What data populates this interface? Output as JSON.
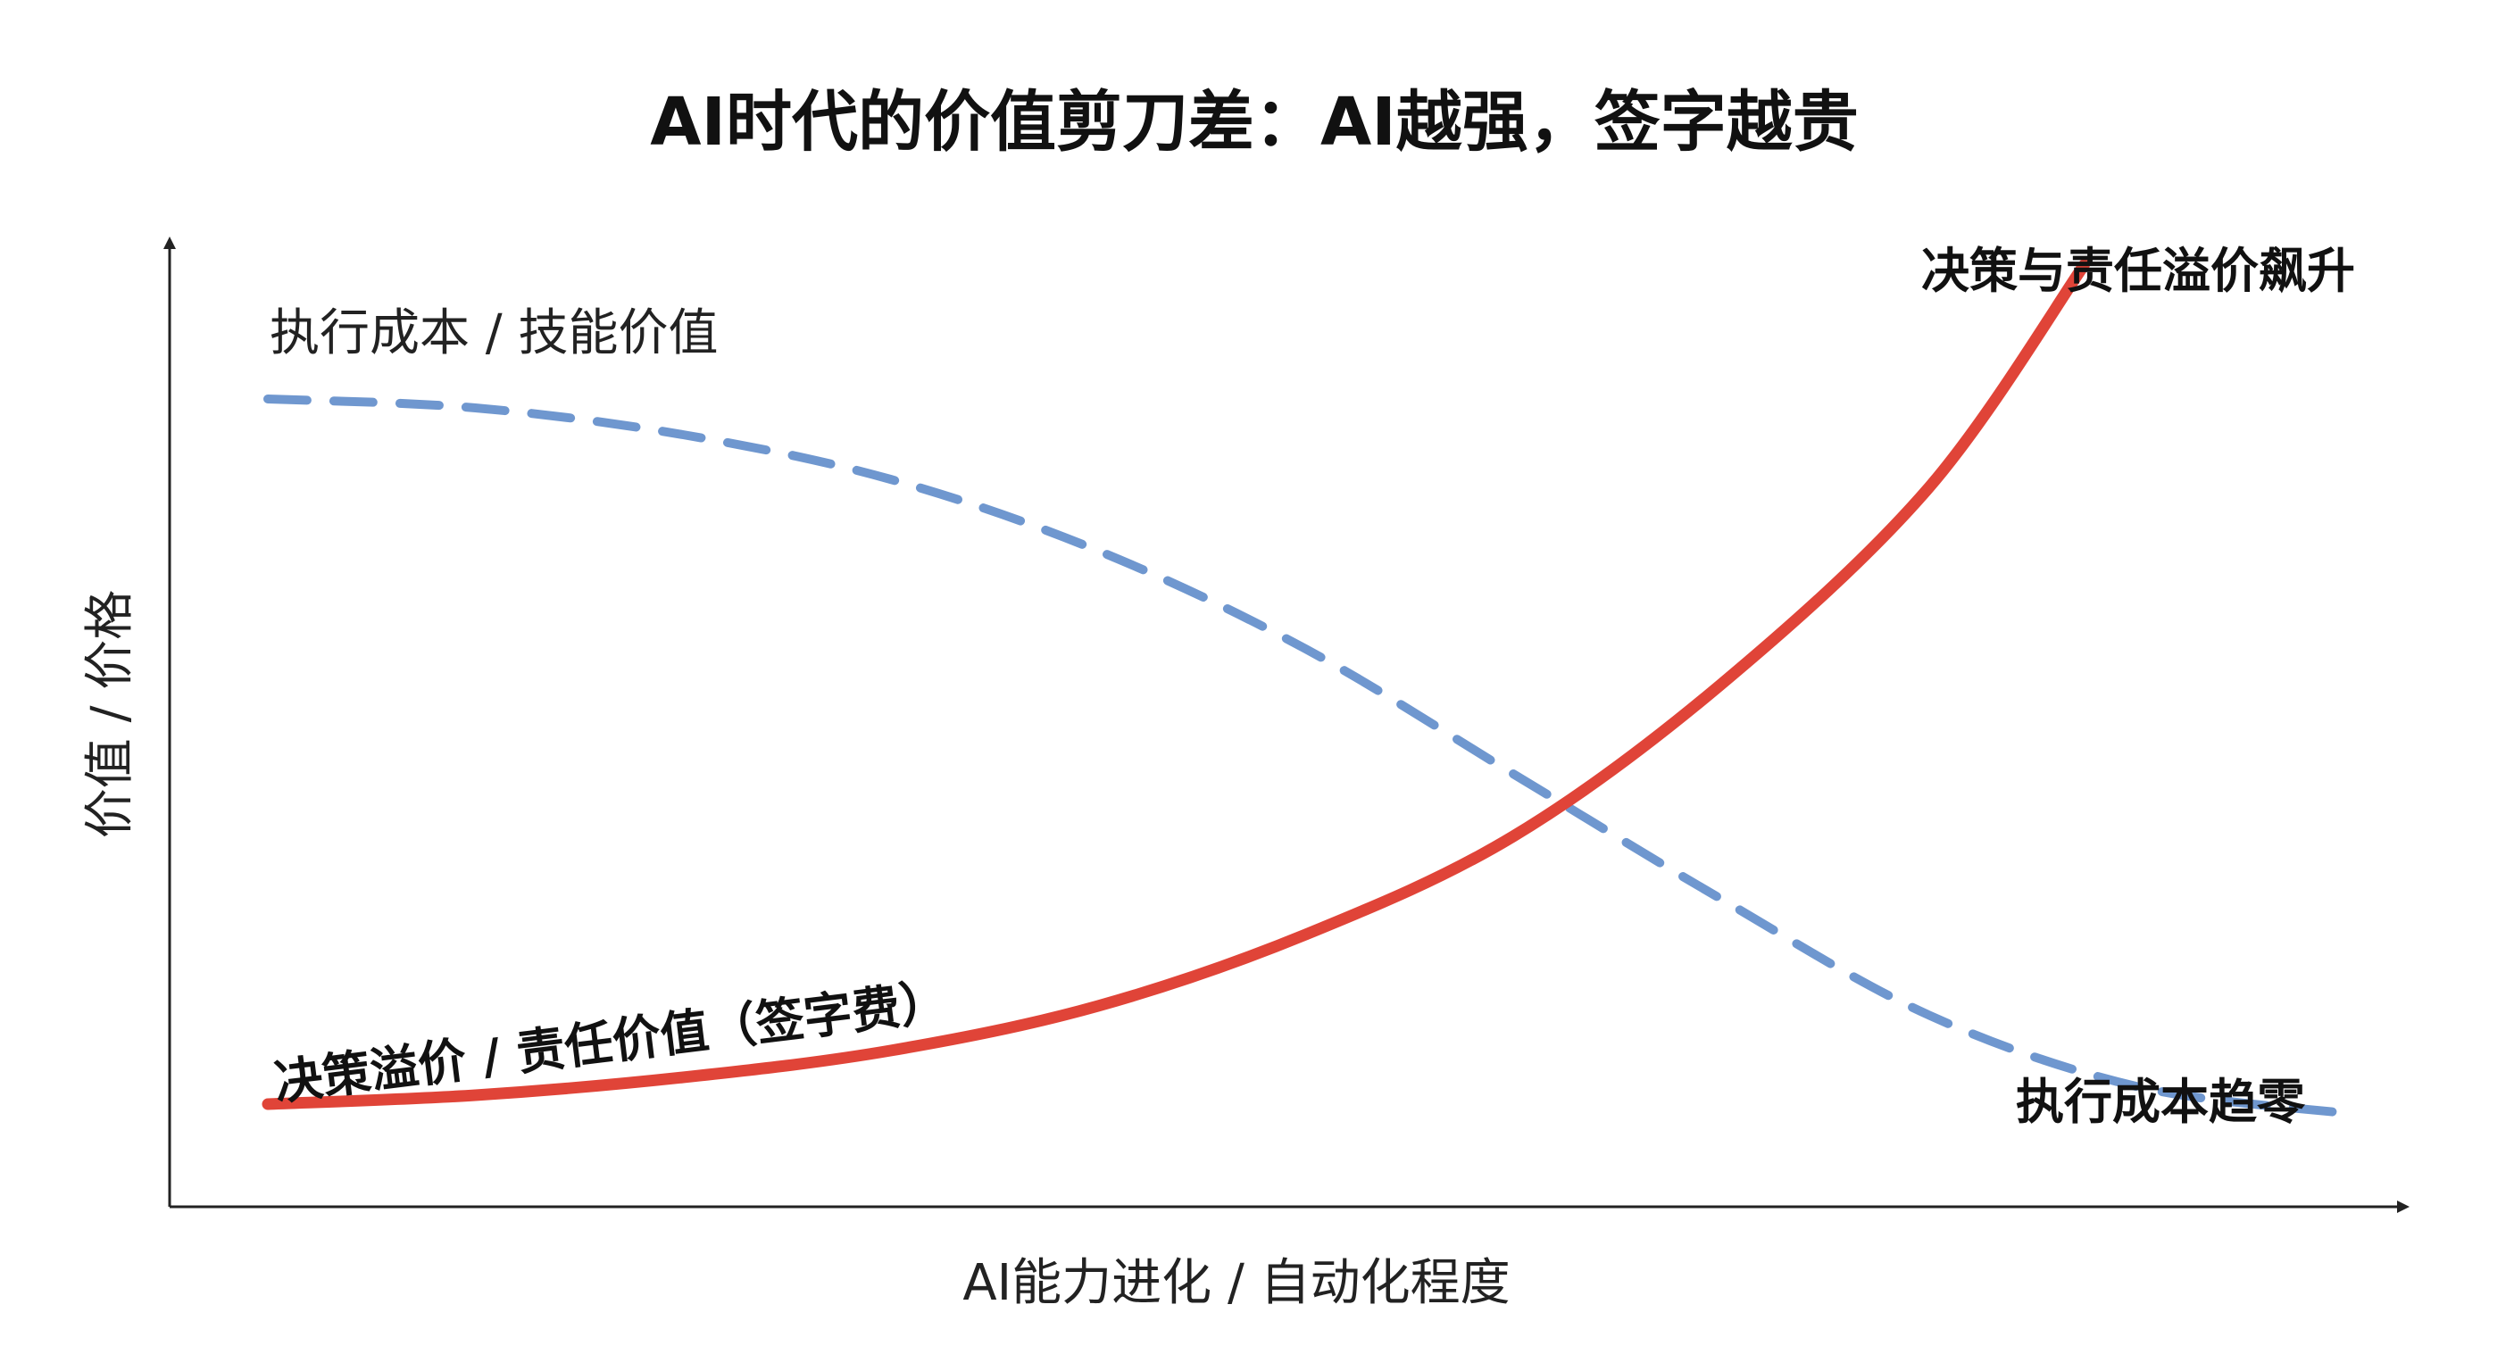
{
  "chart_data": {
    "type": "line",
    "title": "AI时代的价值剪刀差：AI越强，签字越贵",
    "xlabel": "AI能力进化 / 自动化程度",
    "ylabel": "价值 / 价格",
    "grid": false,
    "axis_ticks": false,
    "series": [
      {
        "name": "执行成本 / 技能价值",
        "style": "dashed",
        "color": "#6f97cf",
        "end_label": "执行成本趋零",
        "points": [
          [
            0.0,
            0.85
          ],
          [
            0.1,
            0.84
          ],
          [
            0.2,
            0.81
          ],
          [
            0.3,
            0.76
          ],
          [
            0.4,
            0.68
          ],
          [
            0.5,
            0.57
          ],
          [
            0.6,
            0.43
          ],
          [
            0.7,
            0.29
          ],
          [
            0.8,
            0.16
          ],
          [
            0.9,
            0.08
          ],
          [
            1.0,
            0.05
          ]
        ]
      },
      {
        "name": "决策溢价 / 责任价值（签字费）",
        "style": "solid",
        "color": "#e04438",
        "end_label": "决策与责任溢价飙升",
        "points": [
          [
            0.0,
            0.06
          ],
          [
            0.1,
            0.07
          ],
          [
            0.2,
            0.09
          ],
          [
            0.3,
            0.12
          ],
          [
            0.4,
            0.17
          ],
          [
            0.5,
            0.25
          ],
          [
            0.6,
            0.36
          ],
          [
            0.7,
            0.53
          ],
          [
            0.8,
            0.75
          ],
          [
            0.875,
            1.0
          ]
        ]
      }
    ],
    "xlim": [
      0,
      1
    ],
    "ylim": [
      0,
      1
    ]
  }
}
